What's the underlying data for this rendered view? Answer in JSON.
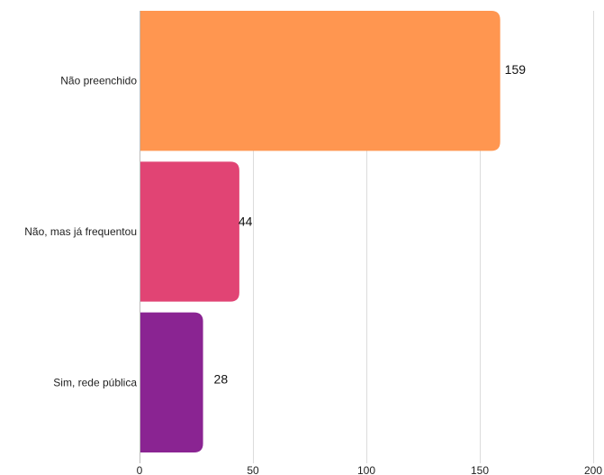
{
  "chart_data": {
    "type": "bar",
    "orientation": "horizontal",
    "categories": [
      "Não preenchido",
      "Não, mas já frequentou",
      "Sim, rede pública"
    ],
    "values": [
      159,
      44,
      28
    ],
    "value_labels": [
      "159",
      "44",
      "28"
    ],
    "colors": [
      "#ff9650",
      "#e14474",
      "#8a2492"
    ],
    "xlim": [
      0,
      200
    ],
    "x_ticks": [
      0,
      50,
      100,
      150,
      200
    ],
    "x_tick_labels": [
      "0",
      "50",
      "100",
      "150",
      "200"
    ],
    "grid": true,
    "title": "",
    "xlabel": "",
    "ylabel": ""
  }
}
